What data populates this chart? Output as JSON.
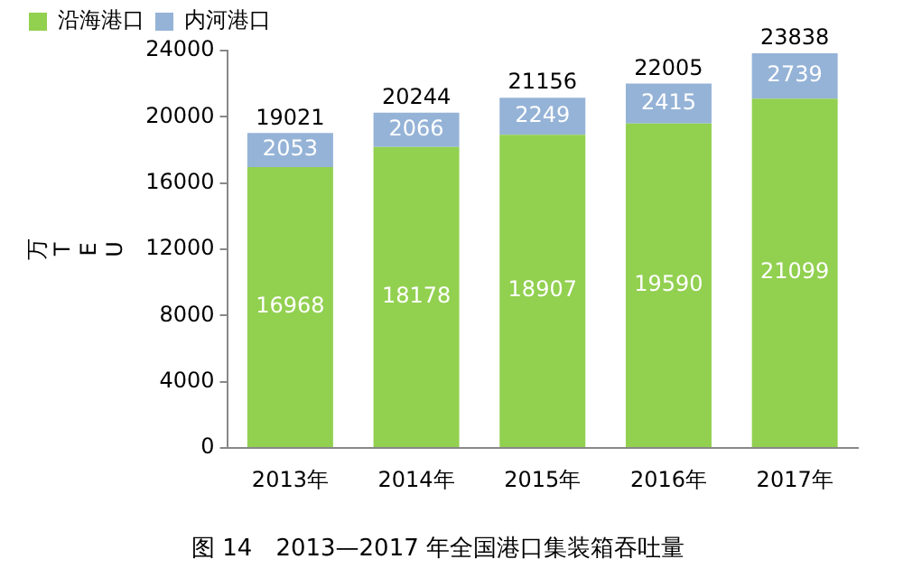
{
  "chart_data": {
    "type": "bar",
    "title": "图 14　2013—2017 年全国港口集装箱吞吐量",
    "ylabel": "万TEU",
    "categories": [
      "2013年",
      "2014年",
      "2015年",
      "2016年",
      "2017年"
    ],
    "series": [
      {
        "name": "沿海港口",
        "color": "#92d050",
        "values": [
          16968,
          18178,
          18907,
          19590,
          21099
        ]
      },
      {
        "name": "内河港口",
        "color": "#95b3d7",
        "values": [
          2053,
          2066,
          2249,
          2415,
          2739
        ]
      }
    ],
    "stacked": true,
    "data_labels": true,
    "totals": [
      "19021",
      "20244",
      "21156",
      "22005",
      "23838"
    ],
    "ylim": [
      0,
      24000
    ],
    "yticks": [
      0,
      4000,
      8000,
      12000,
      16000,
      20000,
      24000
    ],
    "grid": false,
    "legend": "top left"
  }
}
